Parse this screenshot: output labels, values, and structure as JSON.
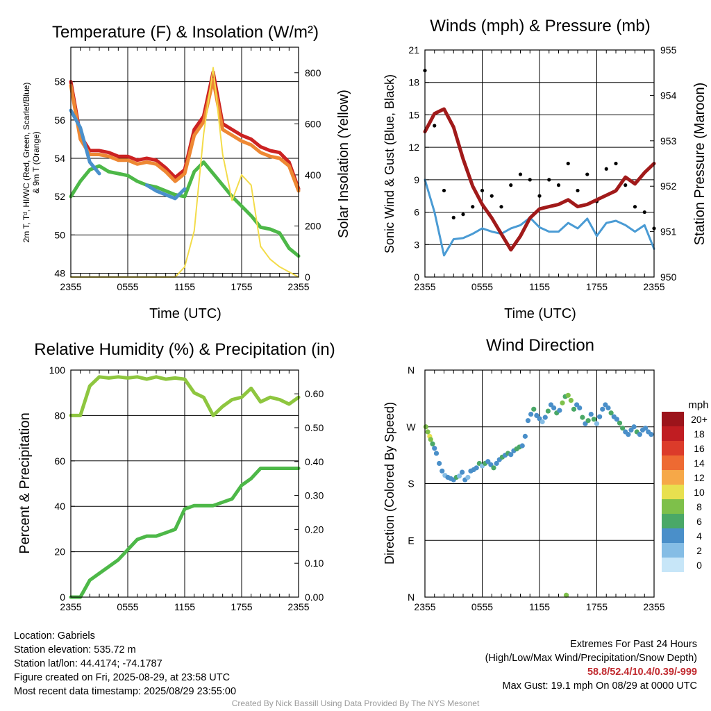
{
  "panels": {
    "temperature": {
      "title": "Temperature (F) & Insolation (W/m²)",
      "ylabel_left_line1": "2m T, Tᵈ, HI/WC (Red, Green, Scarlet/Blue)",
      "ylabel_left_line2": "& 9m T (Orange)",
      "ylabel_right": "Solar Insolation (Yellow)",
      "xlabel": "Time (UTC)"
    },
    "winds": {
      "title": "Winds (mph) & Pressure (mb)",
      "ylabel_left": "Sonic Wind & Gust (Blue, Black)",
      "ylabel_right": "Station Pressure (Maroon)",
      "xlabel": "Time (UTC)"
    },
    "humidity": {
      "title": "Relative Humidity (%) & Precipitation (in)",
      "ylabel_left": "Percent & Precipitation"
    },
    "direction": {
      "title": "Wind Direction",
      "ylabel_left": "Direction (Colored By Speed)",
      "colorbar_title": "mph",
      "colorbar_labels": [
        "20+",
        "18",
        "16",
        "14",
        "12",
        "10",
        "8",
        "6",
        "4",
        "2",
        "0"
      ]
    }
  },
  "info": {
    "location": "Location: Gabriels",
    "elevation": "Station elevation: 535.72 m",
    "latlon": "Station lat/lon: 44.4174; -74.1787",
    "created": "Figure created on Fri, 2025-08-29, at 23:58 UTC",
    "recent": "Most recent data timestamp: 2025/08/29 23:55:00",
    "extremes_title": "Extremes For Past 24 Hours",
    "extremes_subtitle": "(High/Low/Max Wind/Precipitation/Snow Depth)",
    "extremes_values": "58.8/52.4/10.4/0.39/-999",
    "max_gust": "Max Gust: 19.1 mph On 08/29 at 0000 UTC"
  },
  "credit": "Created By Nick Bassill Using Data Provided By The NYS Mesonet",
  "colors": {
    "temp": "#cc2222",
    "temp9m": "#ee8833",
    "dewpoint": "#4db848",
    "windchill": "#4a90cc",
    "insolation": "#f3dc4a",
    "wind": "#4a9bd4",
    "gust": "#000000",
    "pressure": "#a11a1a",
    "rh": "#8ec63f",
    "precip": "#4db848"
  },
  "chart_data": [
    {
      "type": "line",
      "title": "Temperature (F) & Insolation (W/m2)",
      "xlabel": "Time (UTC)",
      "x_tick_labels": [
        "2355",
        "0555",
        "1155",
        "1755",
        "2355"
      ],
      "x_hours": [
        0,
        1,
        2,
        3,
        4,
        5,
        6,
        7,
        8,
        9,
        10,
        11,
        12,
        13,
        14,
        15,
        16,
        17,
        18,
        19,
        20,
        21,
        22,
        23,
        24
      ],
      "ylim_left": [
        47.8,
        59.8
      ],
      "yticks_left": [
        48,
        50,
        52,
        54,
        56,
        58
      ],
      "ylim_right": [
        0,
        900
      ],
      "yticks_right": [
        0,
        200,
        400,
        600,
        800
      ],
      "series": [
        {
          "name": "2m T",
          "axis": "left",
          "color": "#cc2222",
          "values": [
            58.0,
            55.2,
            54.4,
            54.4,
            54.3,
            54.1,
            54.1,
            53.9,
            54.0,
            53.9,
            53.5,
            53.0,
            53.4,
            55.5,
            56.2,
            58.5,
            55.8,
            55.5,
            55.2,
            55.0,
            54.6,
            54.4,
            54.3,
            53.8,
            52.4
          ]
        },
        {
          "name": "9m T",
          "axis": "left",
          "color": "#ee8833",
          "values": [
            57.8,
            55.0,
            54.2,
            54.2,
            54.1,
            53.9,
            53.9,
            53.7,
            53.8,
            53.7,
            53.3,
            52.8,
            53.2,
            55.2,
            55.9,
            58.1,
            55.5,
            55.2,
            54.9,
            54.7,
            54.3,
            54.1,
            54.0,
            53.6,
            52.3
          ]
        },
        {
          "name": "Td",
          "axis": "left",
          "color": "#4db848",
          "values": [
            52.0,
            52.8,
            53.4,
            53.6,
            53.3,
            53.2,
            53.1,
            52.8,
            52.6,
            52.5,
            52.3,
            52.1,
            52.0,
            53.3,
            53.8,
            53.2,
            52.6,
            52.0,
            51.5,
            51.0,
            50.4,
            50.3,
            50.1,
            49.3,
            48.9
          ]
        },
        {
          "name": "HI/WC",
          "axis": "left",
          "color": "#4a90cc",
          "values": [
            56.5,
            55.6,
            53.8,
            53.2,
            null,
            null,
            null,
            null,
            52.6,
            52.3,
            52.1,
            51.9,
            52.4,
            null,
            null,
            null,
            null,
            null,
            null,
            null,
            null,
            null,
            null,
            null,
            null
          ]
        },
        {
          "name": "Solar Insolation",
          "axis": "right",
          "color": "#f3dc4a",
          "values": [
            0,
            0,
            0,
            0,
            0,
            0,
            0,
            0,
            0,
            0,
            0,
            0,
            40,
            180,
            560,
            820,
            480,
            300,
            400,
            360,
            120,
            70,
            40,
            20,
            0
          ]
        }
      ]
    },
    {
      "type": "line",
      "title": "Winds (mph) & Pressure (mb)",
      "xlabel": "Time (UTC)",
      "x_tick_labels": [
        "2355",
        "0555",
        "1155",
        "1755",
        "2355"
      ],
      "x_hours": [
        0,
        1,
        2,
        3,
        4,
        5,
        6,
        7,
        8,
        9,
        10,
        11,
        12,
        13,
        14,
        15,
        16,
        17,
        18,
        19,
        20,
        21,
        22,
        23,
        24
      ],
      "ylim_left": [
        0,
        21
      ],
      "yticks_left": [
        0,
        3,
        6,
        9,
        12,
        15,
        18,
        21
      ],
      "ylim_right": [
        950,
        955
      ],
      "yticks_right": [
        950,
        951,
        952,
        953,
        954,
        955
      ],
      "series": [
        {
          "name": "Sonic Wind",
          "axis": "left",
          "color": "#4a9bd4",
          "style": "line",
          "values": [
            9.0,
            6.0,
            2.0,
            3.5,
            3.6,
            4.0,
            4.5,
            4.2,
            4.0,
            4.5,
            4.8,
            5.5,
            4.6,
            4.2,
            4.2,
            5.0,
            4.5,
            5.4,
            3.8,
            5.0,
            5.2,
            4.8,
            4.2,
            4.8,
            2.6
          ]
        },
        {
          "name": "Gust",
          "axis": "left",
          "color": "#000000",
          "style": "scatter",
          "values": [
            19.1,
            14.0,
            8.0,
            5.5,
            5.8,
            6.5,
            8.0,
            7.5,
            6.5,
            8.5,
            9.5,
            9.0,
            7.5,
            9.0,
            8.5,
            10.5,
            8.0,
            9.5,
            7.0,
            10.0,
            10.5,
            8.5,
            6.5,
            6.0,
            4.5
          ]
        },
        {
          "name": "Station Pressure",
          "axis": "right",
          "color": "#a11a1a",
          "style": "line",
          "values": [
            953.2,
            953.6,
            953.7,
            953.3,
            952.6,
            952.0,
            951.6,
            951.3,
            950.95,
            950.6,
            950.9,
            951.3,
            951.5,
            951.55,
            951.6,
            951.7,
            951.55,
            951.6,
            951.7,
            951.8,
            951.9,
            952.2,
            952.05,
            952.3,
            952.5
          ]
        }
      ]
    },
    {
      "type": "line",
      "title": "Relative Humidity (%) & Precipitation (in)",
      "xlabel": "",
      "x_tick_labels": [
        "2355",
        "0555",
        "1155",
        "1755",
        "2355"
      ],
      "x_hours": [
        0,
        1,
        2,
        3,
        4,
        5,
        6,
        7,
        8,
        9,
        10,
        11,
        12,
        13,
        14,
        15,
        16,
        17,
        18,
        19,
        20,
        21,
        22,
        23,
        24
      ],
      "ylim_left": [
        0,
        100
      ],
      "yticks_left": [
        0,
        20,
        40,
        60,
        80,
        100
      ],
      "ylim_right": [
        0,
        0.67
      ],
      "yticks_right": [
        0.0,
        0.1,
        0.2,
        0.3,
        0.4,
        0.5,
        0.6
      ],
      "series": [
        {
          "name": "Relative Humidity",
          "axis": "left",
          "color": "#8ec63f",
          "values": [
            80,
            80,
            93,
            97,
            96.5,
            97,
            96.5,
            97,
            96,
            97,
            96,
            96.5,
            96,
            90,
            88,
            80,
            84,
            87,
            88,
            92,
            86,
            88,
            87,
            85,
            88
          ]
        },
        {
          "name": "Precipitation",
          "axis": "right",
          "color": "#4db848",
          "values": [
            0,
            0,
            0.05,
            0.07,
            0.09,
            0.11,
            0.14,
            0.17,
            0.18,
            0.18,
            0.19,
            0.2,
            0.26,
            0.27,
            0.27,
            0.27,
            0.28,
            0.29,
            0.33,
            0.35,
            0.38,
            0.38,
            0.38,
            0.38,
            0.38
          ]
        }
      ]
    },
    {
      "type": "scatter",
      "title": "Wind Direction",
      "x_tick_labels": [
        "2355",
        "0555",
        "1155",
        "1755",
        "2355"
      ],
      "y_tick_labels": [
        "N",
        "E",
        "S",
        "W",
        "N"
      ],
      "ylim": [
        0,
        360
      ],
      "colorbar": {
        "title": "mph",
        "labels": [
          "20+",
          "18",
          "16",
          "14",
          "12",
          "10",
          "8",
          "6",
          "4",
          "2",
          "0"
        ]
      },
      "points": [
        [
          0.1,
          270,
          8
        ],
        [
          0.3,
          262,
          8
        ],
        [
          0.5,
          255,
          10
        ],
        [
          0.6,
          250,
          7
        ],
        [
          0.8,
          243,
          6
        ],
        [
          1.0,
          236,
          4
        ],
        [
          1.2,
          228,
          3
        ],
        [
          1.5,
          212,
          4
        ],
        [
          1.8,
          200,
          3
        ],
        [
          2.1,
          193,
          2
        ],
        [
          2.4,
          190,
          4
        ],
        [
          2.7,
          188,
          3
        ],
        [
          3.0,
          186,
          4
        ],
        [
          3.3,
          190,
          5
        ],
        [
          3.6,
          192,
          2
        ],
        [
          3.9,
          198,
          3
        ],
        [
          4.2,
          186,
          4
        ],
        [
          4.5,
          190,
          2
        ],
        [
          4.8,
          200,
          4
        ],
        [
          5.1,
          202,
          3
        ],
        [
          5.4,
          205,
          4
        ],
        [
          5.7,
          212,
          5
        ],
        [
          6.0,
          208,
          2
        ],
        [
          6.3,
          212,
          6
        ],
        [
          6.6,
          215,
          4
        ],
        [
          6.9,
          210,
          3
        ],
        [
          7.2,
          205,
          5
        ],
        [
          7.5,
          212,
          3
        ],
        [
          7.8,
          218,
          4
        ],
        [
          8.1,
          222,
          6
        ],
        [
          8.4,
          225,
          3
        ],
        [
          8.7,
          228,
          6
        ],
        [
          9.0,
          226,
          3
        ],
        [
          9.3,
          232,
          4
        ],
        [
          9.6,
          235,
          5
        ],
        [
          9.9,
          238,
          6
        ],
        [
          10.2,
          240,
          3
        ],
        [
          10.5,
          255,
          4
        ],
        [
          10.8,
          280,
          3
        ],
        [
          11.1,
          290,
          4
        ],
        [
          11.4,
          298,
          5
        ],
        [
          11.7,
          288,
          3
        ],
        [
          12.0,
          283,
          4
        ],
        [
          12.3,
          278,
          2
        ],
        [
          12.6,
          285,
          3
        ],
        [
          12.9,
          295,
          5
        ],
        [
          13.2,
          305,
          4
        ],
        [
          13.5,
          300,
          3
        ],
        [
          13.8,
          292,
          6
        ],
        [
          14.1,
          296,
          4
        ],
        [
          14.4,
          308,
          7
        ],
        [
          14.7,
          318,
          6
        ],
        [
          15.0,
          320,
          8
        ],
        [
          15.3,
          312,
          7
        ],
        [
          15.6,
          298,
          5
        ],
        [
          15.9,
          305,
          4
        ],
        [
          16.2,
          300,
          3
        ],
        [
          16.5,
          285,
          6
        ],
        [
          16.8,
          275,
          4
        ],
        [
          17.1,
          280,
          5
        ],
        [
          17.4,
          290,
          4
        ],
        [
          17.7,
          282,
          6
        ],
        [
          18.0,
          275,
          2
        ],
        [
          18.3,
          286,
          3
        ],
        [
          18.6,
          298,
          4
        ],
        [
          18.9,
          305,
          3
        ],
        [
          19.2,
          300,
          4
        ],
        [
          19.5,
          292,
          5
        ],
        [
          19.8,
          286,
          3
        ],
        [
          20.1,
          282,
          4
        ],
        [
          20.4,
          276,
          6
        ],
        [
          20.7,
          268,
          5
        ],
        [
          21.0,
          262,
          4
        ],
        [
          21.3,
          258,
          3
        ],
        [
          21.6,
          265,
          4
        ],
        [
          21.9,
          270,
          3
        ],
        [
          22.2,
          262,
          6
        ],
        [
          22.5,
          258,
          4
        ],
        [
          22.8,
          265,
          3
        ],
        [
          23.1,
          268,
          4
        ],
        [
          23.4,
          262,
          3
        ],
        [
          23.7,
          258,
          4
        ],
        [
          14.8,
          3,
          7
        ]
      ]
    }
  ]
}
